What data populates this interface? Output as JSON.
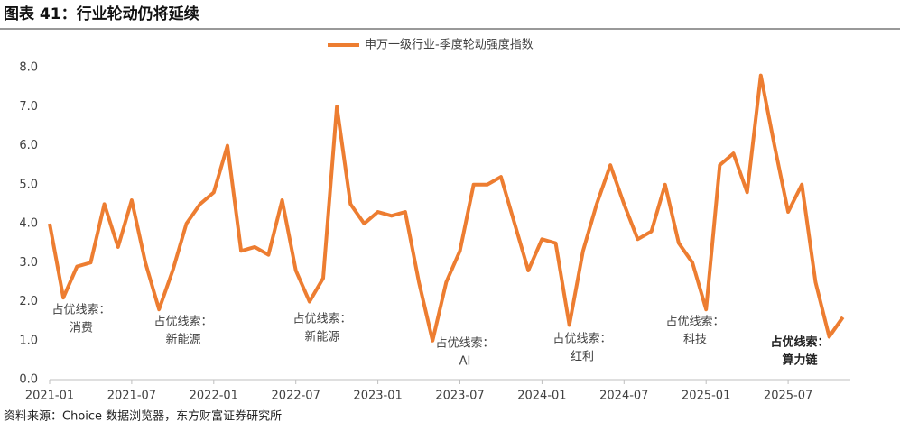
{
  "page_title": "图表 41：行业轮动仍将延续",
  "source": "资料来源：Choice 数据浏览器，东方财富证券研究所",
  "chart_data": {
    "type": "line",
    "x": [
      "2021-01",
      "2021-02",
      "2021-03",
      "2021-04",
      "2021-05",
      "2021-06",
      "2021-07",
      "2021-08",
      "2021-09",
      "2021-10",
      "2021-11",
      "2021-12",
      "2022-01",
      "2022-02",
      "2022-03",
      "2022-04",
      "2022-05",
      "2022-06",
      "2022-07",
      "2022-08",
      "2022-09",
      "2022-10",
      "2022-11",
      "2022-12",
      "2023-01",
      "2023-02",
      "2023-03",
      "2023-04",
      "2023-05",
      "2023-06",
      "2023-07",
      "2023-08",
      "2023-09",
      "2023-10",
      "2023-11",
      "2023-12",
      "2024-01",
      "2024-02",
      "2024-03",
      "2024-04",
      "2024-05",
      "2024-06",
      "2024-07",
      "2024-08",
      "2024-09",
      "2024-10",
      "2024-11",
      "2024-12",
      "2025-01",
      "2025-02",
      "2025-03",
      "2025-04",
      "2025-05",
      "2025-06",
      "2025-07",
      "2025-08",
      "2025-09",
      "2025-10",
      "2025-11"
    ],
    "series": [
      {
        "name": "申万一级行业-季度轮动强度指数",
        "color": "#ed7d31",
        "values": [
          4.0,
          2.1,
          2.9,
          3.0,
          4.5,
          3.4,
          4.6,
          3.0,
          1.8,
          2.8,
          4.0,
          4.5,
          4.8,
          6.0,
          3.3,
          3.4,
          3.2,
          4.6,
          2.8,
          2.0,
          2.6,
          7.0,
          4.5,
          4.0,
          4.3,
          4.2,
          4.3,
          2.5,
          1.0,
          2.5,
          3.3,
          5.0,
          5.0,
          5.2,
          4.0,
          2.8,
          3.6,
          3.5,
          1.4,
          3.3,
          4.5,
          5.5,
          4.5,
          3.6,
          3.8,
          5.0,
          3.5,
          3.0,
          1.8,
          5.5,
          5.8,
          4.8,
          7.8,
          6.0,
          4.3,
          5.0,
          2.5,
          1.1,
          1.6
        ]
      }
    ],
    "ylim": [
      0,
      8
    ],
    "yticks": [
      {
        "value": 0,
        "label": "0.0"
      },
      {
        "value": 1,
        "label": "1.0"
      },
      {
        "value": 2,
        "label": "2.0"
      },
      {
        "value": 3,
        "label": "3.0"
      },
      {
        "value": 4,
        "label": "4.0"
      },
      {
        "value": 5,
        "label": "5.0"
      },
      {
        "value": 6,
        "label": "6.0"
      },
      {
        "value": 7,
        "label": "7.0"
      },
      {
        "value": 8,
        "label": "8.0"
      }
    ],
    "xticks": [
      "2021-01",
      "2021-07",
      "2022-01",
      "2022-07",
      "2023-01",
      "2023-07",
      "2024-01",
      "2024-07",
      "2025-01",
      "2025-07"
    ],
    "legend": "top",
    "annotations": [
      {
        "title": "占优线索：",
        "text": "消费"
      },
      {
        "title": "占优线索：",
        "text": "新能源"
      },
      {
        "title": "占优线索：",
        "text": "新能源"
      },
      {
        "title": "占优线索：",
        "text": "AI"
      },
      {
        "title": "占优线索：",
        "text": "红利"
      },
      {
        "title": "占优线索：",
        "text": "科技"
      },
      {
        "title": "占优线索：",
        "text": "算力链"
      }
    ]
  }
}
